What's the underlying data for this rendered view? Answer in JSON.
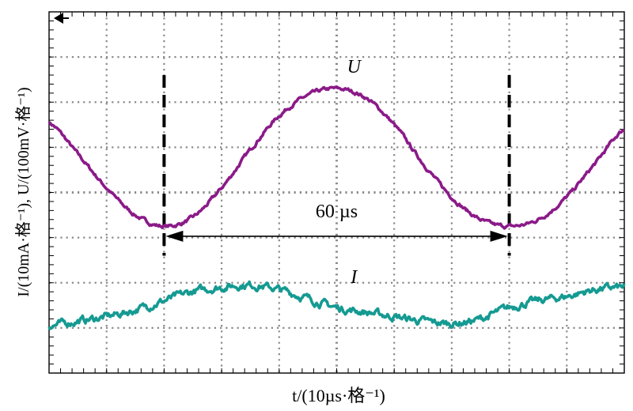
{
  "chart_data": {
    "type": "line",
    "xlabel": "t/(10µs·格⁻¹)",
    "ylabel": "I/(10mA·格⁻¹), U/(100mV·格⁻¹)",
    "x_unit": "divisions",
    "y_unit": "divisions",
    "xlim": [
      0,
      10
    ],
    "ylim": [
      -4,
      4
    ],
    "x_divisions": 10,
    "y_divisions": 8,
    "grid": true,
    "series": [
      {
        "name": "U",
        "color": "#8b1a89",
        "x": [
          0,
          0.5,
          1,
          1.5,
          2,
          2.5,
          3,
          3.5,
          4,
          4.5,
          5,
          5.5,
          6,
          6.5,
          7,
          7.5,
          8,
          8.5,
          9,
          9.5,
          10
        ],
        "y": [
          1.55,
          0.85,
          0.1,
          -0.5,
          -0.75,
          -0.55,
          0.1,
          0.95,
          1.7,
          2.15,
          2.3,
          2.1,
          1.5,
          0.65,
          -0.1,
          -0.6,
          -0.75,
          -0.6,
          -0.1,
          0.65,
          1.4
        ]
      },
      {
        "name": "I",
        "color": "#159a92",
        "x": [
          0,
          0.5,
          1,
          1.5,
          2,
          2.5,
          3,
          3.5,
          4,
          4.5,
          5,
          5.5,
          6,
          6.5,
          7,
          7.5,
          8,
          8.5,
          9,
          9.5,
          10
        ],
        "y": [
          -2.95,
          -2.85,
          -2.75,
          -2.6,
          -2.4,
          -2.2,
          -2.1,
          -2.05,
          -2.15,
          -2.35,
          -2.55,
          -2.65,
          -2.75,
          -2.85,
          -2.9,
          -2.8,
          -2.55,
          -2.4,
          -2.3,
          -2.15,
          -2.1
        ]
      }
    ],
    "annotations": [
      {
        "text": "U",
        "x": 5.3,
        "y": 2.65
      },
      {
        "text": "I",
        "x": 5.3,
        "y": -2.0
      },
      {
        "text": "60 µs",
        "x": 5.0,
        "y": -0.55
      }
    ],
    "period_markers_x": [
      2,
      8
    ]
  }
}
